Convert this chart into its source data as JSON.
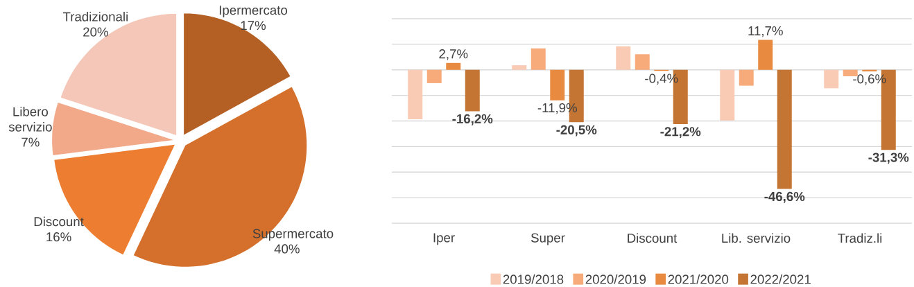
{
  "chart_data": [
    {
      "type": "pie",
      "categories": [
        "Ipermercato",
        "Supermercato",
        "Discount",
        "Libero servizio",
        "Tradizionali"
      ],
      "values": [
        17,
        40,
        16,
        7,
        20
      ],
      "colors": [
        "#b45f23",
        "#d4702c",
        "#ed7d31",
        "#f1a98a",
        "#f4c7b8"
      ],
      "value_labels": [
        "17%",
        "40%",
        "16%",
        "7%",
        "20%"
      ]
    },
    {
      "type": "bar",
      "categories": [
        "Iper",
        "Super",
        "Discount",
        "Lib. servizio",
        "Tradiz.li"
      ],
      "series": [
        {
          "name": "2019/2018",
          "color": "#f9cbb4",
          "values": [
            -19.3,
            1.8,
            9.2,
            -19.8,
            -7.2
          ]
        },
        {
          "name": "2020/2019",
          "color": "#f7ab7a",
          "values": [
            -5.2,
            8.4,
            6.1,
            -6.2,
            -2.5
          ]
        },
        {
          "name": "2021/2020",
          "color": "#e88b40",
          "values": [
            2.7,
            -11.9,
            -0.4,
            11.7,
            -0.6
          ],
          "value_labels": [
            "2,7%",
            "-11,9%",
            "-0,4%",
            "11,7%",
            "-0,6%"
          ]
        },
        {
          "name": "2022/2021",
          "color": "#c47533",
          "values": [
            -16.2,
            -20.5,
            -21.2,
            -46.6,
            -31.3
          ],
          "value_labels": [
            "-16,2%",
            "-20,5%",
            "-21,2%",
            "-46,6%",
            "-31,3%"
          ]
        }
      ],
      "ylim": [
        -60,
        20
      ],
      "yticks": [
        {
          "value": -60,
          "label": null
        },
        {
          "value": -50,
          "label": null
        },
        {
          "value": -40,
          "label": null
        },
        {
          "value": -30,
          "label": null
        },
        {
          "value": -20,
          "label": null
        },
        {
          "value": -10,
          "label": null
        },
        {
          "value": 0,
          "label": null
        },
        {
          "value": 10,
          "label": null
        },
        {
          "value": 20,
          "label": null
        }
      ],
      "grid": "y",
      "legend": "bottom",
      "tick_labels": "x"
    }
  ]
}
